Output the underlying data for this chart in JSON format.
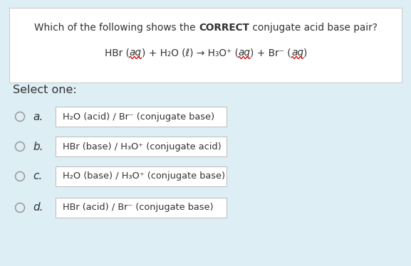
{
  "bg_color": "#ddeef4",
  "question_box_color": "#ffffff",
  "option_box_color": "#ffffff",
  "text_color": "#333333",
  "red_color": "#cc0000",
  "select_one": "Select one:",
  "options": [
    {
      "label": "a.",
      "text": "H₂O (acid) / Br⁻ (conjugate base)"
    },
    {
      "label": "b.",
      "text": "HBr (base) / H₃O⁺ (conjugate acid)"
    },
    {
      "label": "c.",
      "text": "H₂O (base) / H₃O⁺ (conjugate base)"
    },
    {
      "label": "d.",
      "text": "HBr (acid) / Br⁻ (conjugate base)"
    }
  ],
  "fig_width": 5.77,
  "fig_height": 3.74,
  "dpi": 100
}
